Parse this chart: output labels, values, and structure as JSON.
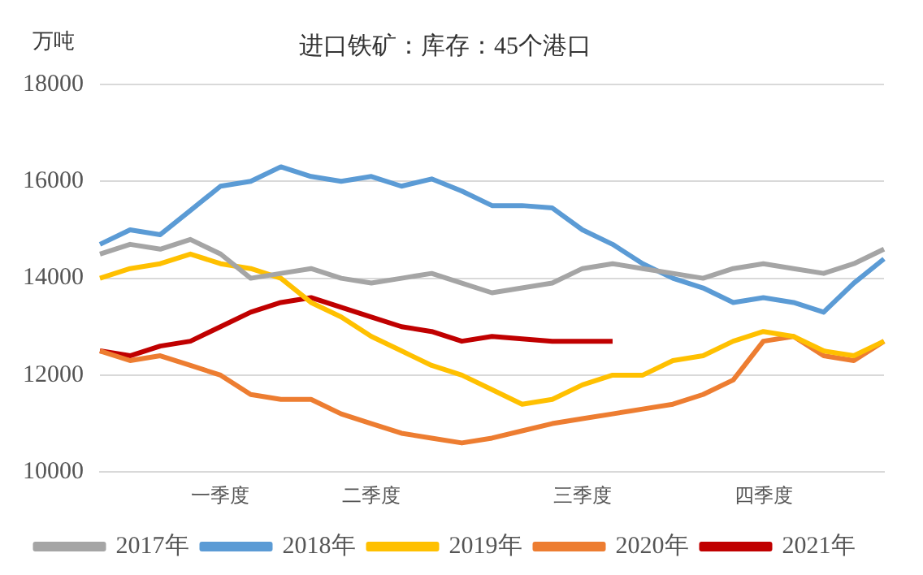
{
  "chart_data": {
    "type": "line",
    "title": "进口铁矿：库存：45个港口",
    "ylabel": "万吨",
    "categories": [
      null,
      null,
      null,
      null,
      "一季度",
      null,
      null,
      null,
      null,
      "二季度",
      null,
      null,
      null,
      null,
      null,
      null,
      "三季度",
      null,
      null,
      null,
      null,
      null,
      "四季度",
      null,
      null,
      null,
      null
    ],
    "series": [
      {
        "name": "2017年",
        "color": "#a5a5a5",
        "values": [
          14500,
          14700,
          14600,
          14800,
          14500,
          14000,
          14100,
          14200,
          14000,
          13900,
          14000,
          14100,
          13900,
          13700,
          13800,
          13900,
          14200,
          14300,
          14200,
          14100,
          14000,
          14200,
          14300,
          14200,
          14100,
          14300,
          14600
        ]
      },
      {
        "name": "2018年",
        "color": "#5b9bd5",
        "values": [
          14700,
          15000,
          14900,
          15400,
          15900,
          16000,
          16300,
          16100,
          16000,
          16100,
          15900,
          16050,
          15800,
          15500,
          15500,
          15450,
          15000,
          14700,
          14300,
          14000,
          13800,
          13500,
          13600,
          13500,
          13300,
          13900,
          14400
        ]
      },
      {
        "name": "2019年",
        "color": "#ffc000",
        "values": [
          14000,
          14200,
          14300,
          14500,
          14300,
          14200,
          14000,
          13500,
          13200,
          12800,
          12500,
          12200,
          12000,
          11700,
          11400,
          11500,
          11800,
          12000,
          12000,
          12300,
          12400,
          12700,
          12900,
          12800,
          12500,
          12400,
          12700
        ]
      },
      {
        "name": "2020年",
        "color": "#ed7d31",
        "values": [
          12500,
          12300,
          12400,
          12200,
          12000,
          11600,
          11500,
          11500,
          11200,
          11000,
          10800,
          10700,
          10600,
          10700,
          10850,
          11000,
          11100,
          11200,
          11300,
          11400,
          11600,
          11900,
          12700,
          12800,
          12400,
          12300,
          12700
        ]
      },
      {
        "name": "2021年",
        "color": "#c00000",
        "values": [
          12500,
          12400,
          12600,
          12700,
          13000,
          13300,
          13500,
          13600,
          13400,
          13200,
          13000,
          12900,
          12700,
          12800,
          12750,
          12700,
          12700,
          12700,
          null,
          null,
          null,
          null,
          null,
          null,
          null,
          null,
          null
        ]
      }
    ],
    "ylim": [
      10000,
      18000
    ],
    "yticks": [
      10000,
      12000,
      14000,
      16000,
      18000
    ],
    "grid": "y",
    "legend": "bottom",
    "marker": "none",
    "line_style": "solid"
  }
}
